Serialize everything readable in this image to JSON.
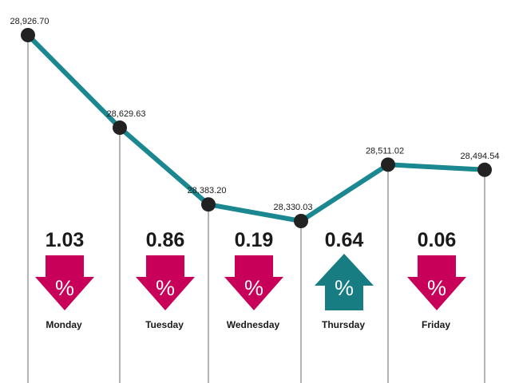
{
  "chart_data": {
    "type": "line",
    "title": "",
    "xlabel": "",
    "ylabel": "",
    "grid": false,
    "categories": [
      "Monday",
      "Tuesday",
      "Wednesday",
      "Thursday",
      "Friday"
    ],
    "points": [
      {
        "day": "Monday",
        "value": 28926.7,
        "label": "28,926.70"
      },
      {
        "day": "Tuesday",
        "value": 28629.63,
        "label": "28,629.63"
      },
      {
        "day": "Wednesday",
        "value": 28383.2,
        "label": "28,383.20"
      },
      {
        "day": "Wednesday",
        "value": 28330.03,
        "label": "28,330.03"
      },
      {
        "day": "Thursday",
        "value": 28511.02,
        "label": "28,511.02"
      },
      {
        "day": "Friday",
        "value": 28494.54,
        "label": "28,494.54"
      }
    ],
    "daily_change": [
      {
        "day": "Monday",
        "percent": "1.03",
        "direction": "down"
      },
      {
        "day": "Tuesday",
        "percent": "0.86",
        "direction": "down"
      },
      {
        "day": "Wednesday",
        "percent": "0.19",
        "direction": "down"
      },
      {
        "day": "Thursday",
        "percent": "0.64",
        "direction": "up"
      },
      {
        "day": "Friday",
        "percent": "0.06",
        "direction": "down"
      }
    ],
    "percent_symbol": "%",
    "colors": {
      "line": "#1b8790",
      "marker": "#222222",
      "down_arrow": "#c8005a",
      "up_arrow": "#177d83",
      "guide": "#6a6a6a"
    }
  }
}
